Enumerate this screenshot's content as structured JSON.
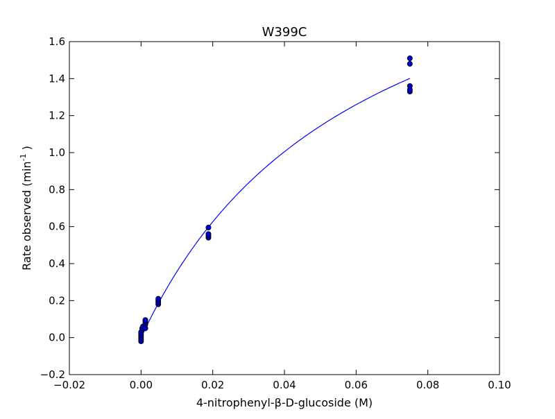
{
  "chart_data": {
    "type": "scatter",
    "title": "W399C",
    "xlabel": "4-nitrophenyl-β-D-glucoside (M)",
    "ylabel": {
      "prefix": "Rate observed (min",
      "superscript": "-1",
      "suffix": " )"
    },
    "xlim": [
      -0.02,
      0.1
    ],
    "ylim": [
      -0.2,
      1.6
    ],
    "x_ticks": [
      -0.02,
      0.0,
      0.02,
      0.04,
      0.06,
      0.08,
      0.1
    ],
    "x_tick_labels": [
      "−0.02",
      "0.00",
      "0.02",
      "0.04",
      "0.06",
      "0.08",
      "0.10"
    ],
    "y_ticks": [
      -0.2,
      0.0,
      0.2,
      0.4,
      0.6,
      0.8,
      1.0,
      1.2,
      1.4,
      1.6
    ],
    "y_tick_labels": [
      "−0.2",
      "0.0",
      "0.2",
      "0.4",
      "0.6",
      "0.8",
      "1.0",
      "1.2",
      "1.4",
      "1.6"
    ],
    "grid": false,
    "legend": "none",
    "points": [
      {
        "x": 0.0,
        "y": -0.02
      },
      {
        "x": 0.0,
        "y": -0.01
      },
      {
        "x": 0.0,
        "y": 0.0
      },
      {
        "x": 0.0,
        "y": 0.01
      },
      {
        "x": 0.0,
        "y": 0.02
      },
      {
        "x": 0.0,
        "y": 0.03
      },
      {
        "x": 0.0003,
        "y": 0.04
      },
      {
        "x": 0.0003,
        "y": 0.05
      },
      {
        "x": 0.0005,
        "y": 0.06
      },
      {
        "x": 0.0012,
        "y": 0.05
      },
      {
        "x": 0.0012,
        "y": 0.07
      },
      {
        "x": 0.0012,
        "y": 0.08
      },
      {
        "x": 0.0012,
        "y": 0.09
      },
      {
        "x": 0.0012,
        "y": 0.095
      },
      {
        "x": 0.0048,
        "y": 0.18
      },
      {
        "x": 0.0048,
        "y": 0.19
      },
      {
        "x": 0.0048,
        "y": 0.2
      },
      {
        "x": 0.0048,
        "y": 0.21
      },
      {
        "x": 0.0188,
        "y": 0.54
      },
      {
        "x": 0.0188,
        "y": 0.55
      },
      {
        "x": 0.0188,
        "y": 0.56
      },
      {
        "x": 0.0188,
        "y": 0.595
      },
      {
        "x": 0.075,
        "y": 1.33
      },
      {
        "x": 0.075,
        "y": 1.34
      },
      {
        "x": 0.075,
        "y": 1.36
      },
      {
        "x": 0.075,
        "y": 1.48
      },
      {
        "x": 0.075,
        "y": 1.51
      }
    ],
    "fit_curve": {
      "model": "michaelis-menten",
      "vmax": 2.55,
      "km": 0.0615,
      "x_range": [
        0.0,
        0.075
      ]
    },
    "colors": {
      "marker_fill": "#0000cc",
      "marker_edge": "#000000",
      "fit_line": "#0000ff",
      "axes": "#000000"
    }
  }
}
